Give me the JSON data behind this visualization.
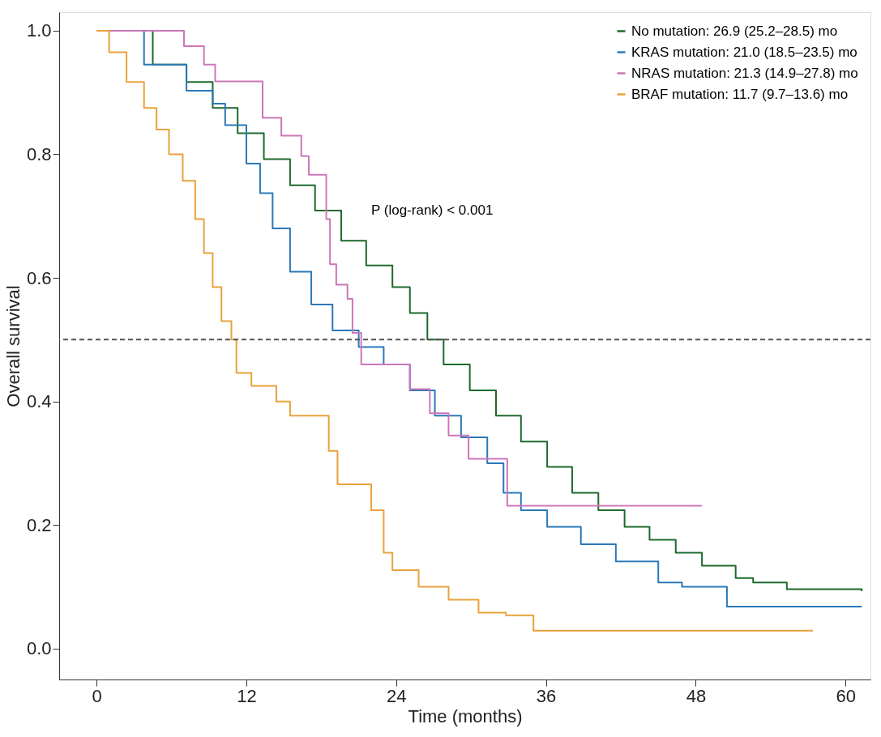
{
  "chart_data": {
    "type": "step",
    "xlabel": "Time (months)",
    "ylabel": "Overall survival",
    "xlim": [
      -3,
      62
    ],
    "ylim": [
      -0.05,
      1.03
    ],
    "xticks": [
      0,
      12,
      24,
      36,
      48,
      60
    ],
    "yticks": [
      {
        "value": 0,
        "label": "0.0"
      },
      {
        "value": 0.2,
        "label": "0.2"
      },
      {
        "value": 0.4,
        "label": "0.4"
      },
      {
        "value": 0.6,
        "label": "0.6"
      },
      {
        "value": 0.8,
        "label": "0.8"
      },
      {
        "value": 1,
        "label": "1.0"
      }
    ],
    "grid": false,
    "legend": "top right",
    "marker": "none",
    "line_style": "solid",
    "series": [
      {
        "name": "No mutation: 26.9 (25.2–28.5) mo",
        "color": "#1d6a2c",
        "x": [
          0,
          4.5,
          7.2,
          9.3,
          11.3,
          13.4,
          15.5,
          17.5,
          19.6,
          21.6,
          23.7,
          25.1,
          26.5,
          27.8,
          29.9,
          32,
          34,
          36.1,
          38.1,
          40.2,
          42.3,
          44.3,
          46.4,
          48.5,
          51.2,
          52.6,
          55.3,
          61.3
        ],
        "values": [
          1.0,
          0.945,
          0.917,
          0.875,
          0.834,
          0.792,
          0.75,
          0.709,
          0.66,
          0.62,
          0.585,
          0.543,
          0.5,
          0.46,
          0.418,
          0.377,
          0.335,
          0.294,
          0.252,
          0.224,
          0.197,
          0.176,
          0.155,
          0.134,
          0.114,
          0.107,
          0.096,
          0.093
        ]
      },
      {
        "name": "KRAS mutation: 21.0 (18.5–23.5) mo",
        "color": "#2a78b8",
        "x": [
          0,
          3.8,
          7.2,
          9.3,
          10.3,
          12,
          13.1,
          14.1,
          15.5,
          17.2,
          18.9,
          21,
          23,
          25.1,
          27.1,
          29.2,
          31.3,
          32.6,
          34,
          36.1,
          38.8,
          41.6,
          45,
          46.9,
          50.5,
          61.3
        ],
        "values": [
          1.0,
          0.945,
          0.903,
          0.882,
          0.847,
          0.785,
          0.737,
          0.68,
          0.61,
          0.557,
          0.515,
          0.488,
          0.46,
          0.418,
          0.377,
          0.342,
          0.3,
          0.252,
          0.224,
          0.197,
          0.169,
          0.141,
          0.107,
          0.1,
          0.068,
          0.068
        ]
      },
      {
        "name": "NRAS mutation: 21.3 (14.9–27.8) mo",
        "color": "#cc77b8",
        "x": [
          0,
          7.0,
          8.6,
          9.5,
          13.3,
          14.8,
          16.4,
          17.0,
          18.4,
          18.7,
          19.2,
          20.1,
          20.5,
          21.2,
          25.1,
          26.7,
          28.2,
          29.8,
          32.9,
          48.5
        ],
        "values": [
          1.0,
          0.975,
          0.945,
          0.918,
          0.859,
          0.83,
          0.797,
          0.767,
          0.695,
          0.622,
          0.589,
          0.566,
          0.511,
          0.46,
          0.42,
          0.381,
          0.345,
          0.307,
          0.231,
          0.231
        ]
      },
      {
        "name": "BRAF mutation: 11.7 (9.7–13.6) mo",
        "color": "#e9a23b",
        "x": [
          0,
          1,
          2.4,
          3.8,
          4.8,
          5.8,
          6.9,
          7.9,
          8.6,
          9.3,
          10,
          10.8,
          11.2,
          12.4,
          14.4,
          15.5,
          18.6,
          19.3,
          22,
          23,
          23.7,
          25.8,
          28.2,
          30.6,
          32.8,
          35,
          57.4
        ],
        "values": [
          1.0,
          0.965,
          0.917,
          0.875,
          0.84,
          0.8,
          0.757,
          0.695,
          0.64,
          0.585,
          0.53,
          0.5,
          0.446,
          0.425,
          0.4,
          0.377,
          0.32,
          0.266,
          0.224,
          0.155,
          0.127,
          0.1,
          0.079,
          0.058,
          0.054,
          0.029,
          0.029
        ]
      }
    ],
    "ref_lines": [
      {
        "axis": "y",
        "value": 0.5,
        "color": "#555555",
        "line_style": "dashed"
      }
    ],
    "annotations": [
      "P (log-rank) < 0.001"
    ]
  }
}
